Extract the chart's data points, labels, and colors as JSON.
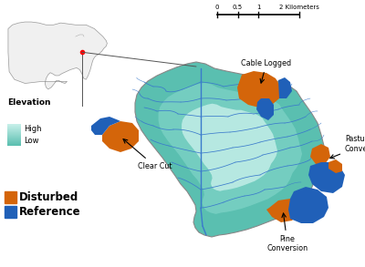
{
  "watershed_color_dark": "#5abfb0",
  "watershed_color_mid": "#80d4c8",
  "watershed_color_light": "#c8f0ea",
  "disturbed_color": "#d4650a",
  "reference_color": "#2060b8",
  "stream_color": "#3a7acc",
  "background_color": "#ffffff",
  "labels": {
    "cable_logged": "Cable Logged",
    "clear_cut": "Clear Cut",
    "pasture_conversion": "Pasture\nConversion",
    "pine_conversion": "Pine\nConversion"
  },
  "legend": {
    "elevation": "Elevation",
    "elevation_high": "High",
    "elevation_low": "Low",
    "disturbed": "Disturbed",
    "reference": "Reference"
  },
  "scalebar": {
    "labels": [
      "0",
      "0.5",
      "1",
      "",
      "2 Kilometers"
    ],
    "ticks": [
      0,
      0.25,
      0.5,
      0.75,
      1.0
    ]
  }
}
